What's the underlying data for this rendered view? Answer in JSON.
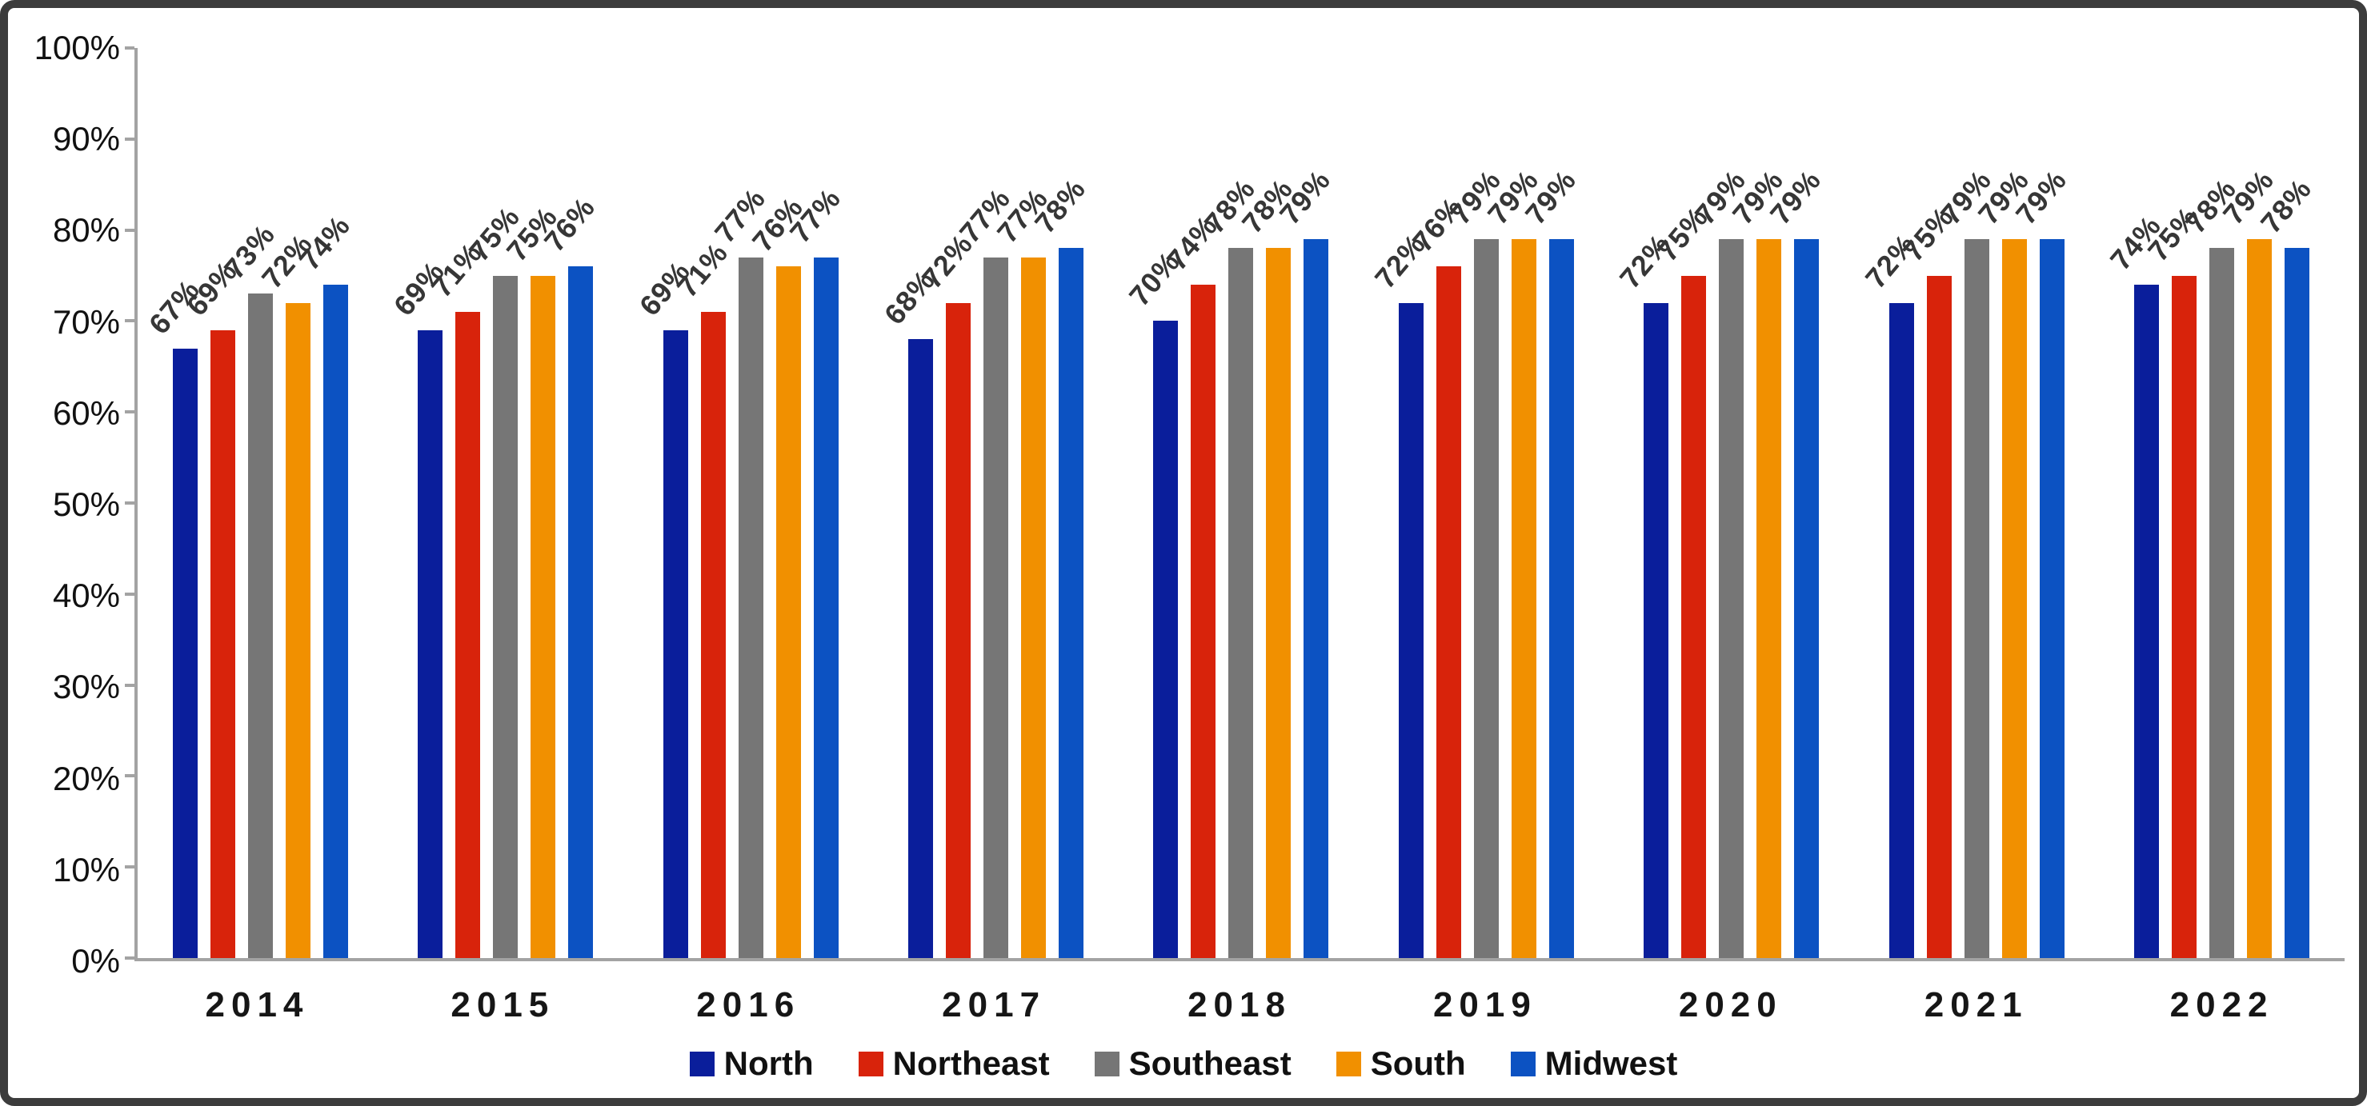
{
  "chart_data": {
    "type": "bar",
    "title": "",
    "xlabel": "",
    "ylabel": "",
    "ylim": [
      0,
      100
    ],
    "grid": false,
    "legend_position": "bottom",
    "value_suffix": "%",
    "categories": [
      "2014",
      "2015",
      "2016",
      "2017",
      "2018",
      "2019",
      "2020",
      "2021",
      "2022"
    ],
    "series": [
      {
        "name": "North",
        "color": "#0A1E9B",
        "values": [
          67,
          69,
          69,
          68,
          70,
          72,
          72,
          72,
          74
        ]
      },
      {
        "name": "Northeast",
        "color": "#D8230B",
        "values": [
          69,
          71,
          71,
          72,
          74,
          76,
          75,
          75,
          75
        ]
      },
      {
        "name": "Southeast",
        "color": "#767676",
        "values": [
          73,
          75,
          77,
          77,
          78,
          79,
          79,
          79,
          78
        ]
      },
      {
        "name": "South",
        "color": "#F19000",
        "values": [
          72,
          75,
          76,
          77,
          78,
          79,
          79,
          79,
          79
        ]
      },
      {
        "name": "Midwest",
        "color": "#0C52C2",
        "values": [
          74,
          76,
          77,
          78,
          79,
          79,
          79,
          79,
          78
        ]
      }
    ],
    "yticks": [
      "0%",
      "10%",
      "20%",
      "30%",
      "40%",
      "50%",
      "60%",
      "70%",
      "80%",
      "90%",
      "100%"
    ],
    "axis_color": "#a3a3a3"
  }
}
